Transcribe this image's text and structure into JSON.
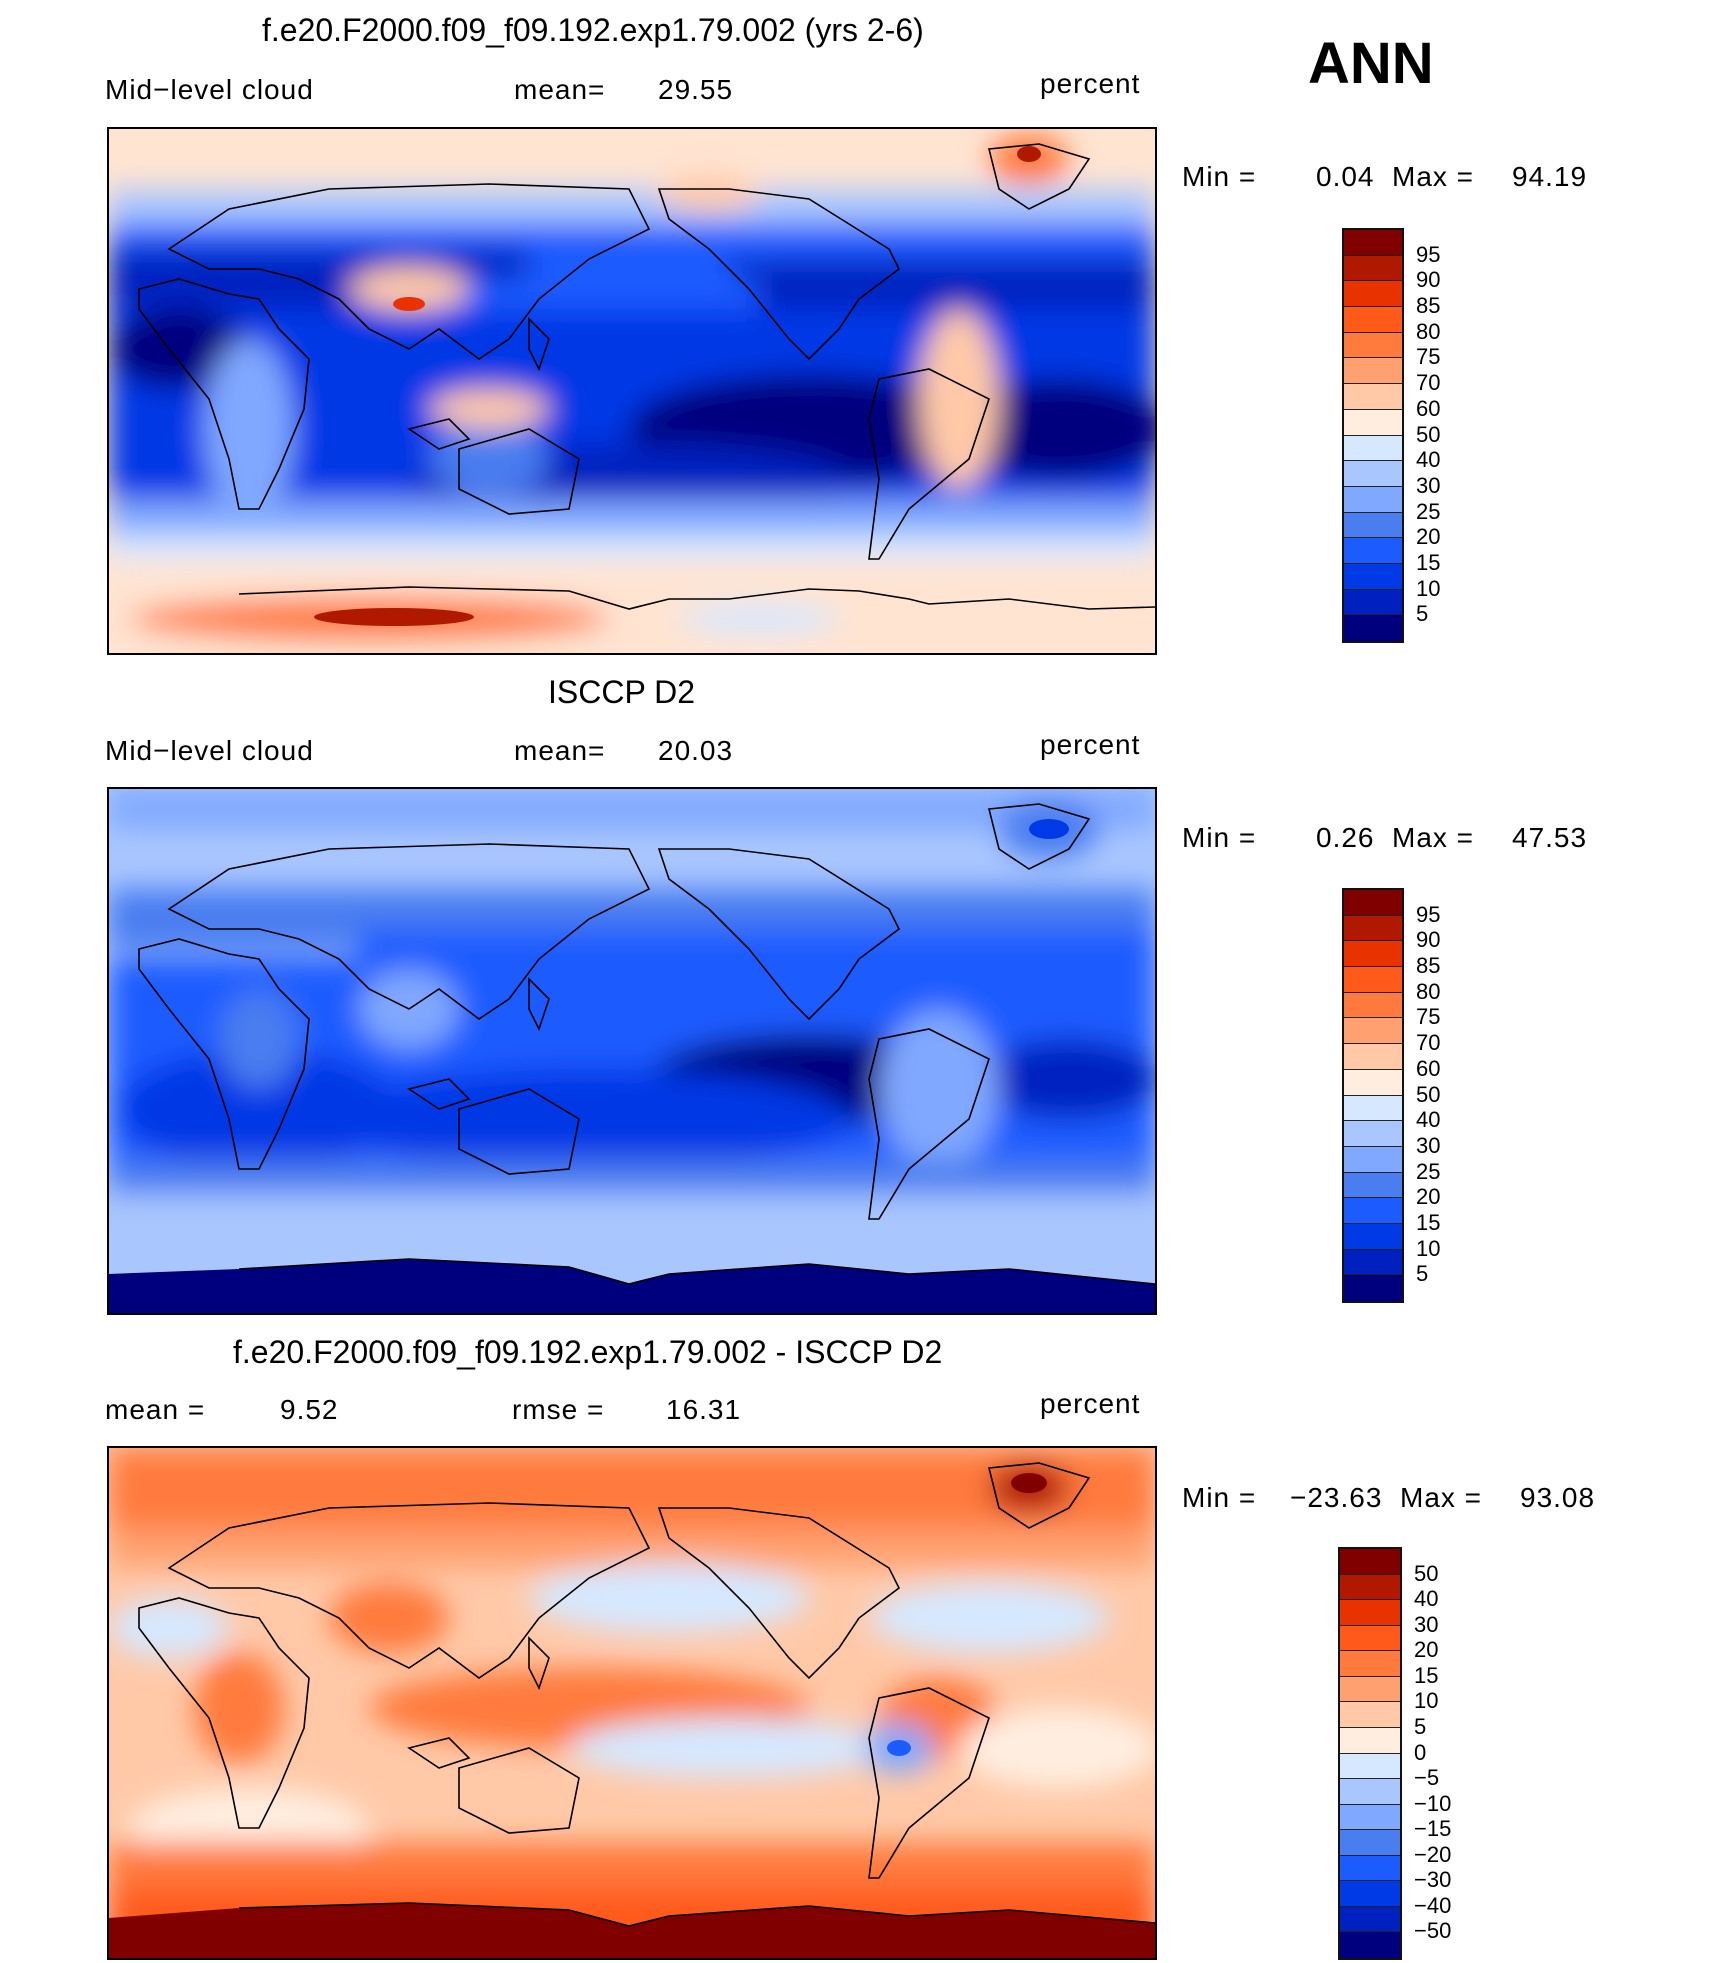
{
  "season_label": "ANN",
  "colors": {
    "seq": [
      "#00007f",
      "#0020c0",
      "#0039e6",
      "#1c5cff",
      "#4a7df0",
      "#80a8ff",
      "#a9c6ff",
      "#d6e8ff",
      "#ffeee0",
      "#ffc9a8",
      "#ffa070",
      "#ff7a3c",
      "#ff5a1a",
      "#e83200",
      "#b01800",
      "#800000"
    ],
    "diff": [
      "#00007f",
      "#0020c0",
      "#0039e6",
      "#1c5cff",
      "#4a7df0",
      "#80a8ff",
      "#a9c6ff",
      "#d6e8ff",
      "#ffeee0",
      "#ffc9a8",
      "#ffa070",
      "#ff7a3c",
      "#ff5a1a",
      "#e83200",
      "#b01800",
      "#800000"
    ]
  },
  "panels": [
    {
      "id": "model",
      "title": "f.e20.F2000.f09_f09.192.exp1.79.002 (yrs 2-6)",
      "left_label": "Mid−level cloud",
      "mid_label": "mean=",
      "mid_value": "29.55",
      "right_label": "percent",
      "min_label": "Min =",
      "min_value": "0.04",
      "max_label": "Max =",
      "max_value": "94.19",
      "colorbar_labels": [
        "95",
        "90",
        "85",
        "80",
        "75",
        "70",
        "60",
        "50",
        "40",
        "30",
        "25",
        "20",
        "15",
        "10",
        "5"
      ]
    },
    {
      "id": "obs",
      "title": "ISCCP D2",
      "left_label": "Mid−level cloud",
      "mid_label": "mean=",
      "mid_value": "20.03",
      "right_label": "percent",
      "min_label": "Min =",
      "min_value": "0.26",
      "max_label": "Max =",
      "max_value": "47.53",
      "colorbar_labels": [
        "95",
        "90",
        "85",
        "80",
        "75",
        "70",
        "60",
        "50",
        "40",
        "30",
        "25",
        "20",
        "15",
        "10",
        "5"
      ]
    },
    {
      "id": "diff",
      "title": "f.e20.F2000.f09_f09.192.exp1.79.002 - ISCCP D2",
      "left_label": "mean =",
      "left_value": "9.52",
      "mid_label": "rmse =",
      "mid_value": "16.31",
      "right_label": "percent",
      "min_label": "Min =",
      "min_value": "−23.63",
      "max_label": "Max =",
      "max_value": "93.08",
      "colorbar_labels": [
        "50",
        "40",
        "30",
        "20",
        "15",
        "10",
        "5",
        "0",
        "−5",
        "−10",
        "−15",
        "−20",
        "−30",
        "−40",
        "−50"
      ]
    }
  ]
}
